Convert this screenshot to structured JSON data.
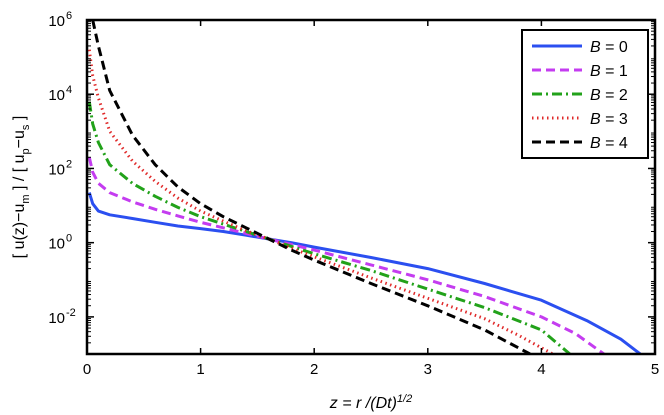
{
  "chart_data": {
    "type": "line",
    "xlabel": {
      "prefix": "z = r /(Dt)",
      "sup": "1/2"
    },
    "ylabel": {
      "part1": "[ u(z)−u",
      "sub1": "m",
      "part2": " ] / [ u",
      "sub2": "p",
      "part3": "−u",
      "sub3": "s",
      "part4": " ]"
    },
    "xlim": [
      0,
      5
    ],
    "ylim_log10": [
      -3,
      6
    ],
    "y_scale": "log",
    "x_ticks": [
      "0",
      "1",
      "2",
      "3",
      "4",
      "5"
    ],
    "y_ticks": [
      {
        "base": "10",
        "exp": "-2",
        "log": -2
      },
      {
        "base": "10",
        "exp": "0",
        "log": 0
      },
      {
        "base": "10",
        "exp": "2",
        "log": 2
      },
      {
        "base": "10",
        "exp": "4",
        "log": 4
      },
      {
        "base": "10",
        "exp": "6",
        "log": 6
      }
    ],
    "grid": false,
    "legend_position": "top-right",
    "series": [
      {
        "name_var": "B",
        "name_val": " = 0",
        "color": "#2b4ff0",
        "dash": "none",
        "points": [
          [
            0.02,
            1.35
          ],
          [
            0.05,
            1.05
          ],
          [
            0.1,
            0.85
          ],
          [
            0.2,
            0.75
          ],
          [
            0.4,
            0.65
          ],
          [
            0.6,
            0.55
          ],
          [
            0.8,
            0.45
          ],
          [
            1.0,
            0.38
          ],
          [
            1.2,
            0.3
          ],
          [
            1.4,
            0.2
          ],
          [
            1.6,
            0.1
          ],
          [
            1.8,
            0.0
          ],
          [
            2.0,
            -0.12
          ],
          [
            2.5,
            -0.4
          ],
          [
            3.0,
            -0.7
          ],
          [
            3.5,
            -1.1
          ],
          [
            4.0,
            -1.55
          ],
          [
            4.4,
            -2.1
          ],
          [
            4.7,
            -2.6
          ],
          [
            4.87,
            -3.0
          ]
        ]
      },
      {
        "name_var": "B",
        "name_val": " = 1",
        "color": "#c43cf0",
        "dash": "9,5",
        "points": [
          [
            0.02,
            2.3
          ],
          [
            0.05,
            1.9
          ],
          [
            0.1,
            1.6
          ],
          [
            0.2,
            1.35
          ],
          [
            0.4,
            1.1
          ],
          [
            0.6,
            0.9
          ],
          [
            0.8,
            0.72
          ],
          [
            1.0,
            0.55
          ],
          [
            1.2,
            0.4
          ],
          [
            1.4,
            0.25
          ],
          [
            1.6,
            0.1
          ],
          [
            1.8,
            -0.05
          ],
          [
            2.0,
            -0.2
          ],
          [
            2.5,
            -0.6
          ],
          [
            3.0,
            -1.0
          ],
          [
            3.5,
            -1.45
          ],
          [
            4.0,
            -2.0
          ],
          [
            4.3,
            -2.45
          ],
          [
            4.55,
            -3.0
          ]
        ]
      },
      {
        "name_var": "B",
        "name_val": " = 2",
        "color": "#22a21a",
        "dash": "10,4,2,4",
        "points": [
          [
            0.02,
            3.8
          ],
          [
            0.05,
            3.2
          ],
          [
            0.1,
            2.7
          ],
          [
            0.2,
            2.1
          ],
          [
            0.4,
            1.6
          ],
          [
            0.6,
            1.25
          ],
          [
            0.8,
            0.95
          ],
          [
            1.0,
            0.7
          ],
          [
            1.2,
            0.5
          ],
          [
            1.4,
            0.3
          ],
          [
            1.6,
            0.1
          ],
          [
            1.8,
            -0.1
          ],
          [
            2.0,
            -0.3
          ],
          [
            2.5,
            -0.75
          ],
          [
            3.0,
            -1.25
          ],
          [
            3.5,
            -1.75
          ],
          [
            4.0,
            -2.35
          ],
          [
            4.25,
            -3.0
          ]
        ]
      },
      {
        "name_var": "B",
        "name_val": " = 3",
        "color": "#e02a2a",
        "dash": "1.5,3.5",
        "points": [
          [
            0.02,
            5.2
          ],
          [
            0.05,
            4.5
          ],
          [
            0.1,
            3.9
          ],
          [
            0.2,
            3.0
          ],
          [
            0.4,
            2.2
          ],
          [
            0.6,
            1.65
          ],
          [
            0.8,
            1.2
          ],
          [
            1.0,
            0.85
          ],
          [
            1.2,
            0.58
          ],
          [
            1.4,
            0.32
          ],
          [
            1.6,
            0.1
          ],
          [
            1.8,
            -0.15
          ],
          [
            2.0,
            -0.38
          ],
          [
            2.5,
            -0.95
          ],
          [
            3.0,
            -1.5
          ],
          [
            3.5,
            -2.05
          ],
          [
            3.8,
            -2.5
          ],
          [
            4.1,
            -3.0
          ]
        ]
      },
      {
        "name_var": "B",
        "name_val": " = 4",
        "color": "#000000",
        "dash": "9,5",
        "points": [
          [
            0.05,
            6.0
          ],
          [
            0.1,
            5.3
          ],
          [
            0.2,
            4.1
          ],
          [
            0.4,
            2.9
          ],
          [
            0.6,
            2.1
          ],
          [
            0.8,
            1.5
          ],
          [
            1.0,
            1.05
          ],
          [
            1.2,
            0.7
          ],
          [
            1.4,
            0.4
          ],
          [
            1.6,
            0.1
          ],
          [
            1.8,
            -0.2
          ],
          [
            2.0,
            -0.47
          ],
          [
            2.5,
            -1.1
          ],
          [
            3.0,
            -1.7
          ],
          [
            3.5,
            -2.35
          ],
          [
            3.9,
            -3.0
          ]
        ]
      }
    ]
  }
}
